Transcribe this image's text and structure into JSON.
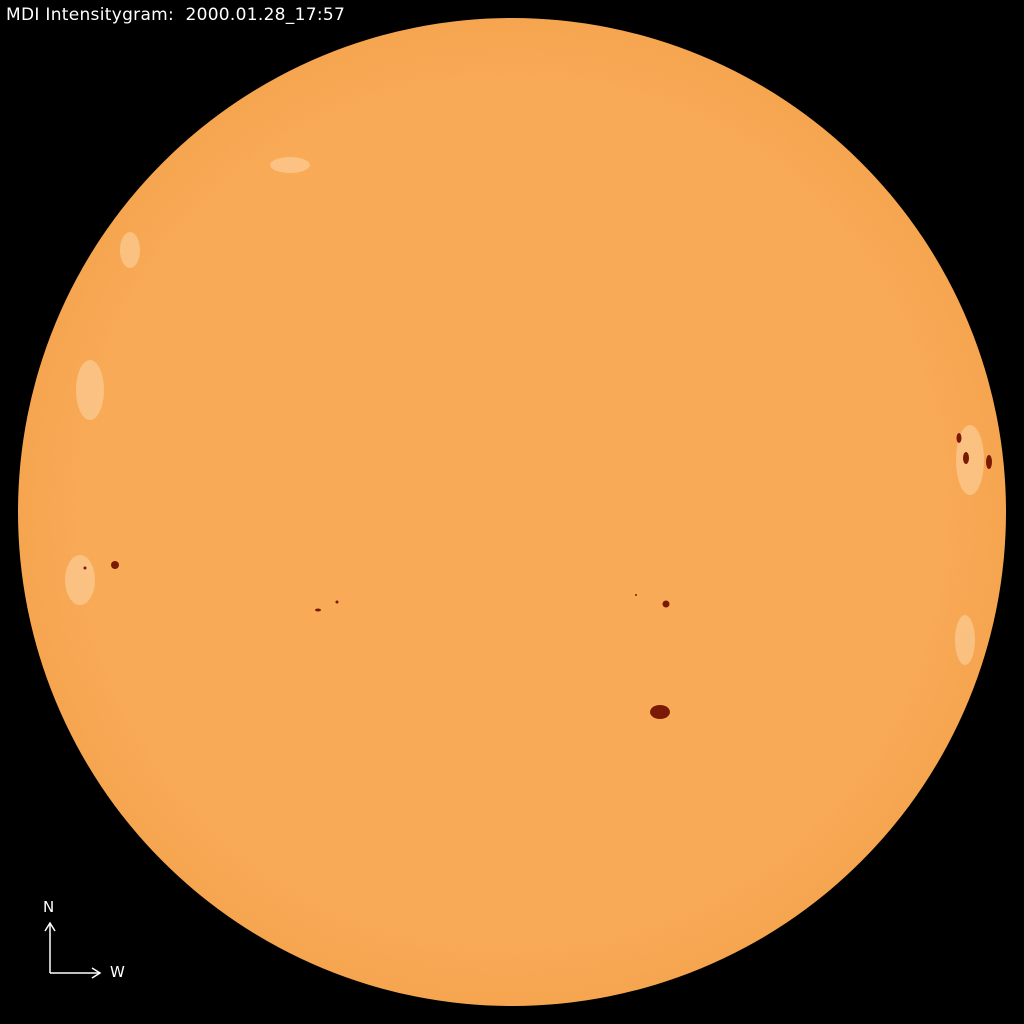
{
  "title": "MDI Intensitygram:  2000.01.28_17:57",
  "compass": {
    "north": "N",
    "west": "W"
  },
  "colors": {
    "background": "#000000",
    "disk": "#F9A852",
    "limb": "#F4A048",
    "spot": "#7A1A05",
    "faculae": "#FCD2A0"
  }
}
